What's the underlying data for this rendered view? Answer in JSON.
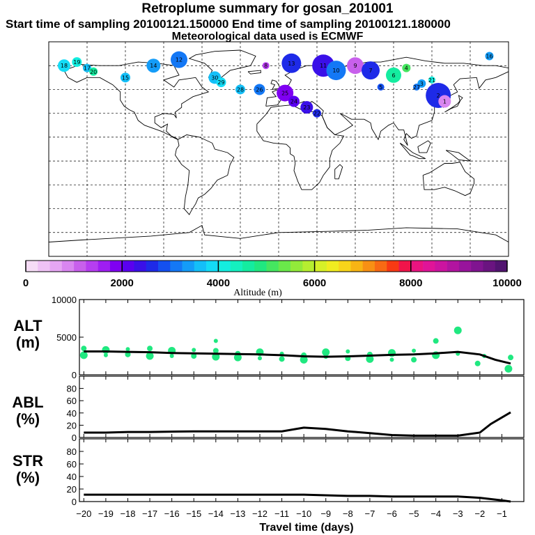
{
  "header": {
    "title": "Retroplume summary for gosan_201001",
    "sampling": "Start time of sampling 20100121.150000     End time of sampling 20100121.180000",
    "meteo": "Meteorological data used is ECMWF"
  },
  "colorbar": {
    "label": "Altitude (m)",
    "ticks": [
      "0",
      "2000",
      "4000",
      "6000",
      "8000",
      "10000"
    ],
    "colors": [
      "#f6dcf6",
      "#efc2f5",
      "#e6a6f3",
      "#d986f0",
      "#c860ec",
      "#b63ef0",
      "#9f1ef2",
      "#7f00f2",
      "#5a00f0",
      "#3a10e8",
      "#1e2ae8",
      "#1450f0",
      "#1478f5",
      "#149cf8",
      "#14bff8",
      "#14dcf6",
      "#14eee0",
      "#14f0bf",
      "#14eca0",
      "#20e880",
      "#45e660",
      "#6ae84a",
      "#92ea3a",
      "#b6ee30",
      "#d6f028",
      "#f0ec20",
      "#f8d41a",
      "#f8b414",
      "#f89014",
      "#f86a14",
      "#f83a14",
      "#f0144a",
      "#ea1480",
      "#e01498",
      "#cc14a0",
      "#b214a0",
      "#98149c",
      "#801490",
      "#6a1480",
      "#521470"
    ]
  },
  "chart_data": [
    {
      "type": "scatter",
      "name": "ALT",
      "ylabel": "ALT (m)",
      "ylim": [
        0,
        10000
      ],
      "yticks": [
        "0",
        "5000",
        "10000"
      ],
      "line": {
        "x": [
          -20,
          -19,
          -18,
          -17,
          -16,
          -15,
          -14,
          -13,
          -12,
          -11,
          -10,
          -9,
          -8,
          -7,
          -6,
          -5,
          -4,
          -3,
          -2,
          -1.3,
          -0.6
        ],
        "y": [
          3100,
          3100,
          3050,
          3000,
          2900,
          2850,
          2800,
          2750,
          2700,
          2600,
          2450,
          2400,
          2450,
          2550,
          2650,
          2700,
          2850,
          3050,
          2700,
          2000,
          1500
        ]
      },
      "points": {
        "x": [
          -20,
          -20,
          -19,
          -19,
          -18,
          -18,
          -17,
          -17,
          -16,
          -16,
          -15,
          -15,
          -14,
          -14,
          -14,
          -13,
          -13,
          -12,
          -12,
          -11,
          -11,
          -10,
          -10,
          -9,
          -9,
          -8,
          -8,
          -7,
          -7,
          -6,
          -6,
          -5,
          -5,
          -4,
          -4,
          -3,
          -3,
          -2.1,
          -1.8,
          -0.7,
          -0.6
        ],
        "y": [
          2600,
          3500,
          2600,
          3300,
          2700,
          3400,
          2500,
          3500,
          2500,
          3200,
          2500,
          3300,
          2400,
          3200,
          4500,
          2300,
          2800,
          2200,
          3000,
          2100,
          2800,
          2000,
          2600,
          2400,
          3000,
          2200,
          3100,
          2100,
          2700,
          2000,
          2900,
          2000,
          3200,
          2600,
          4500,
          2800,
          5900,
          1500,
          2500,
          800,
          2300
        ]
      }
    },
    {
      "type": "line",
      "name": "ABL",
      "ylabel": "ABL (%)",
      "ylim": [
        0,
        100
      ],
      "yticks": [
        "0",
        "20",
        "40",
        "60",
        "80"
      ],
      "x": [
        -20,
        -19,
        -18,
        -17,
        -16,
        -15,
        -14,
        -13,
        -12,
        -11,
        -10,
        -9,
        -8,
        -7,
        -6,
        -5,
        -4,
        -3,
        -2,
        -1.5,
        -0.6
      ],
      "y": [
        8,
        8,
        9,
        9,
        9.5,
        10,
        10,
        10,
        10,
        10,
        16,
        14,
        10,
        7,
        4,
        3,
        3,
        3,
        8,
        22,
        41
      ]
    },
    {
      "type": "line",
      "name": "STR",
      "ylabel": "STR (%)",
      "ylim": [
        0,
        100
      ],
      "yticks": [
        "0",
        "20",
        "40",
        "60",
        "80"
      ],
      "x": [
        -20,
        -19,
        -18,
        -17,
        -16,
        -15,
        -14,
        -13,
        -12,
        -11,
        -10,
        -9,
        -8,
        -7,
        -6,
        -5,
        -4,
        -3,
        -2,
        -1,
        -0.6
      ],
      "y": [
        11,
        11,
        11,
        11,
        11,
        11,
        11,
        11,
        11,
        11,
        11,
        10,
        9,
        9,
        8,
        8,
        8,
        8,
        6,
        2,
        0
      ]
    }
  ],
  "xaxis": {
    "label": "Travel time (days)",
    "ticks": [
      "−20",
      "−19",
      "−18",
      "−17",
      "−16",
      "−15",
      "−14",
      "−13",
      "−12",
      "−11",
      "−10",
      "−9",
      "−8",
      "−7",
      "−6",
      "−5",
      "−4",
      "−3",
      "−2",
      "−1"
    ]
  },
  "map_labels": [
    "18",
    "19",
    "17",
    "20",
    "15",
    "14",
    "12",
    "13",
    "11",
    "10",
    "9",
    "8",
    "7",
    "6",
    "5",
    "4",
    "3",
    "2",
    "1",
    "16",
    "30",
    "29",
    "28",
    "27",
    "26",
    "25",
    "24",
    "23",
    "22",
    "21"
  ]
}
